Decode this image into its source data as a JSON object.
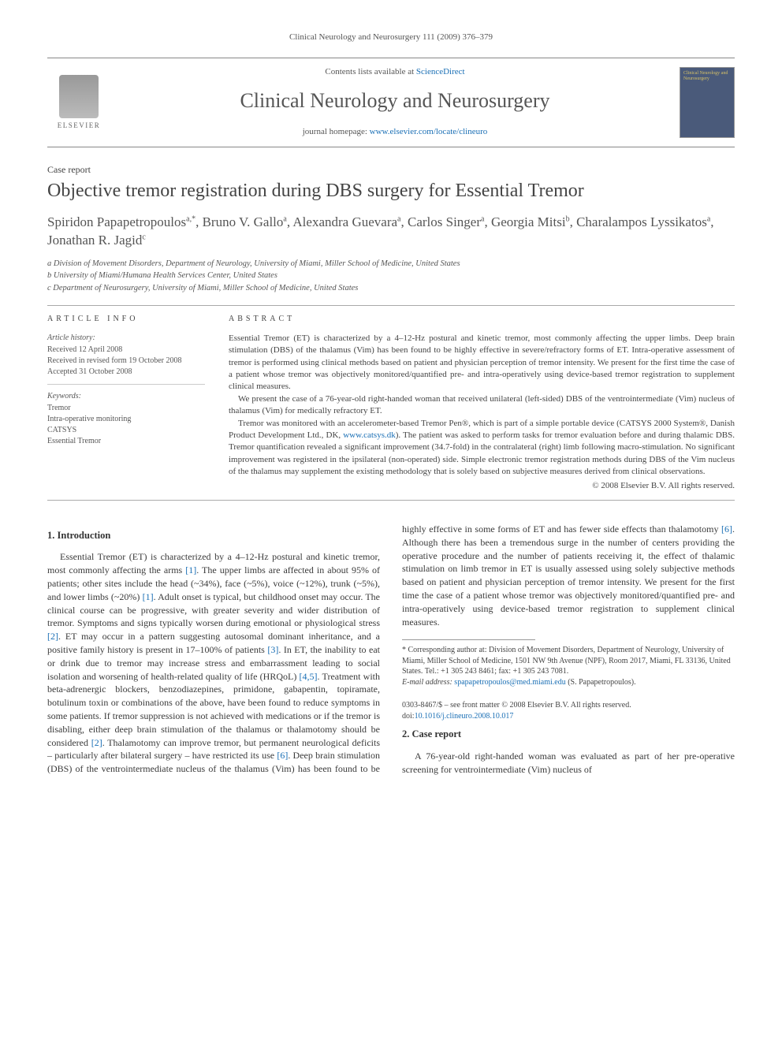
{
  "header": {
    "citation": "Clinical Neurology and Neurosurgery 111 (2009) 376–379",
    "contents_prefix": "Contents lists available at ",
    "contents_link": "ScienceDirect",
    "journal_name": "Clinical Neurology and Neurosurgery",
    "homepage_prefix": "journal homepage: ",
    "homepage_link": "www.elsevier.com/locate/clineuro",
    "publisher": "ELSEVIER",
    "cover_text": "Clinical Neurology and Neurosurgery"
  },
  "article": {
    "type_label": "Case report",
    "title": "Objective tremor registration during DBS surgery for Essential Tremor",
    "authors_html": "Spiridon Papapetropoulos<sup>a,*</sup>, Bruno V. Gallo<sup>a</sup>, Alexandra Guevara<sup>a</sup>, Carlos Singer<sup>a</sup>, Georgia Mitsi<sup>b</sup>, Charalampos Lyssikatos<sup>a</sup>, Jonathan R. Jagid<sup>c</sup>",
    "affiliations": [
      "a Division of Movement Disorders, Department of Neurology, University of Miami, Miller School of Medicine, United States",
      "b University of Miami/Humana Health Services Center, United States",
      "c Department of Neurosurgery, University of Miami, Miller School of Medicine, United States"
    ]
  },
  "article_info": {
    "header": "ARTICLE INFO",
    "history_head": "Article history:",
    "received": "Received 12 April 2008",
    "revised": "Received in revised form 19 October 2008",
    "accepted": "Accepted 31 October 2008",
    "keywords_head": "Keywords:",
    "keywords": [
      "Tremor",
      "Intra-operative monitoring",
      "CATSYS",
      "Essential Tremor"
    ]
  },
  "abstract": {
    "header": "ABSTRACT",
    "p1": "Essential Tremor (ET) is characterized by a 4–12-Hz postural and kinetic tremor, most commonly affecting the upper limbs. Deep brain stimulation (DBS) of the thalamus (Vim) has been found to be highly effective in severe/refractory forms of ET. Intra-operative assessment of tremor is performed using clinical methods based on patient and physician perception of tremor intensity. We present for the first time the case of a patient whose tremor was objectively monitored/quantified pre- and intra-operatively using device-based tremor registration to supplement clinical measures.",
    "p2": "We present the case of a 76-year-old right-handed woman that received unilateral (left-sided) DBS of the ventrointermediate (Vim) nucleus of thalamus (Vim) for medically refractory ET.",
    "p3_before_link": "Tremor was monitored with an accelerometer-based Tremor Pen®, which is part of a simple portable device (CATSYS 2000 System®, Danish Product Development Ltd., DK, ",
    "p3_link": "www.catsys.dk",
    "p3_after_link": "). The patient was asked to perform tasks for tremor evaluation before and during thalamic DBS. Tremor quantification revealed a significant improvement (34.7-fold) in the contralateral (right) limb following macro-stimulation. No significant improvement was registered in the ipsilateral (non-operated) side. Simple electronic tremor registration methods during DBS of the Vim nucleus of the thalamus may supplement the existing methodology that is solely based on subjective measures derived from clinical observations.",
    "copyright": "© 2008 Elsevier B.V. All rights reserved."
  },
  "body": {
    "s1_heading": "1. Introduction",
    "s1_p1_a": "Essential Tremor (ET) is characterized by a 4–12-Hz postural and kinetic tremor, most commonly affecting the arms ",
    "ref1": "[1]",
    "s1_p1_b": ". The upper limbs are affected in about 95% of patients; other sites include the head (~34%), face (~5%), voice (~12%), trunk (~5%), and lower limbs (~20%) ",
    "s1_p1_c": ". Adult onset is typical, but childhood onset may occur. The clinical course can be progressive, with greater severity and wider distribution of tremor. Symptoms and signs typically worsen during emotional or physiological stress ",
    "ref2": "[2]",
    "s1_p1_d": ". ET may occur in a pattern suggesting autosomal dominant inheritance, and a positive family history is present in 17–100% of patients ",
    "ref3": "[3]",
    "s1_p1_e": ". In ET, the inability to eat or drink due to tremor may increase stress and embarrassment leading to social isolation and worsening of health-related quality of life (HRQoL) ",
    "ref45": "[4,5]",
    "s1_p1_f": ". Treatment with beta-adrenergic blockers, benzodiazepines, primi",
    "s1_p1_g": "done, gabapentin, topiramate, botulinum toxin or combinations of the above, have been found to reduce symptoms in some patients. If tremor suppression is not achieved with medications or if the tremor is disabling, either deep brain stimulation of the thalamus or thalamotomy should be considered ",
    "s1_p1_h": ". Thalamotomy can improve tremor, but permanent neurological deficits – particularly after bilateral surgery – have restricted its use ",
    "ref6": "[6]",
    "s1_p1_i": ". Deep brain stimulation (DBS) of the ventrointermediate nucleus of the thalamus (Vim) has been found to be highly effective in some forms of ET and has fewer side effects than thalamotomy ",
    "s1_p1_j": ". Although there has been a tremendous surge in the number of centers providing the operative procedure and the number of patients receiving it, the effect of thalamic stimulation on limb tremor in ET is usually assessed using solely subjective methods based on patient and physician perception of tremor intensity. We present for the first time the case of a patient whose tremor was objectively monitored/quantified pre- and intra-operatively using device-based tremor registration to supplement clinical measures.",
    "s2_heading": "2. Case report",
    "s2_p1": "A 76-year-old right-handed woman was evaluated as part of her pre-operative screening for ventrointermediate (Vim) nucleus of"
  },
  "footnotes": {
    "corr": "* Corresponding author at: Division of Movement Disorders, Department of Neurology, University of Miami, Miller School of Medicine, 1501 NW 9th Avenue (NPF), Room 2017, Miami, FL 33136, United States. Tel.: +1 305 243 8461; fax: +1 305 243 7081.",
    "email_label": "E-mail address: ",
    "email": "spapapetropoulos@med.miami.edu",
    "email_suffix": " (S. Papapetropoulos)."
  },
  "footer": {
    "front_matter": "0303-8467/$ – see front matter © 2008 Elsevier B.V. All rights reserved.",
    "doi_label": "doi:",
    "doi": "10.1016/j.clineuro.2008.10.017"
  },
  "colors": {
    "link": "#1a6fb5",
    "text": "#3a3a3a",
    "muted": "#555",
    "rule": "#aaa"
  }
}
